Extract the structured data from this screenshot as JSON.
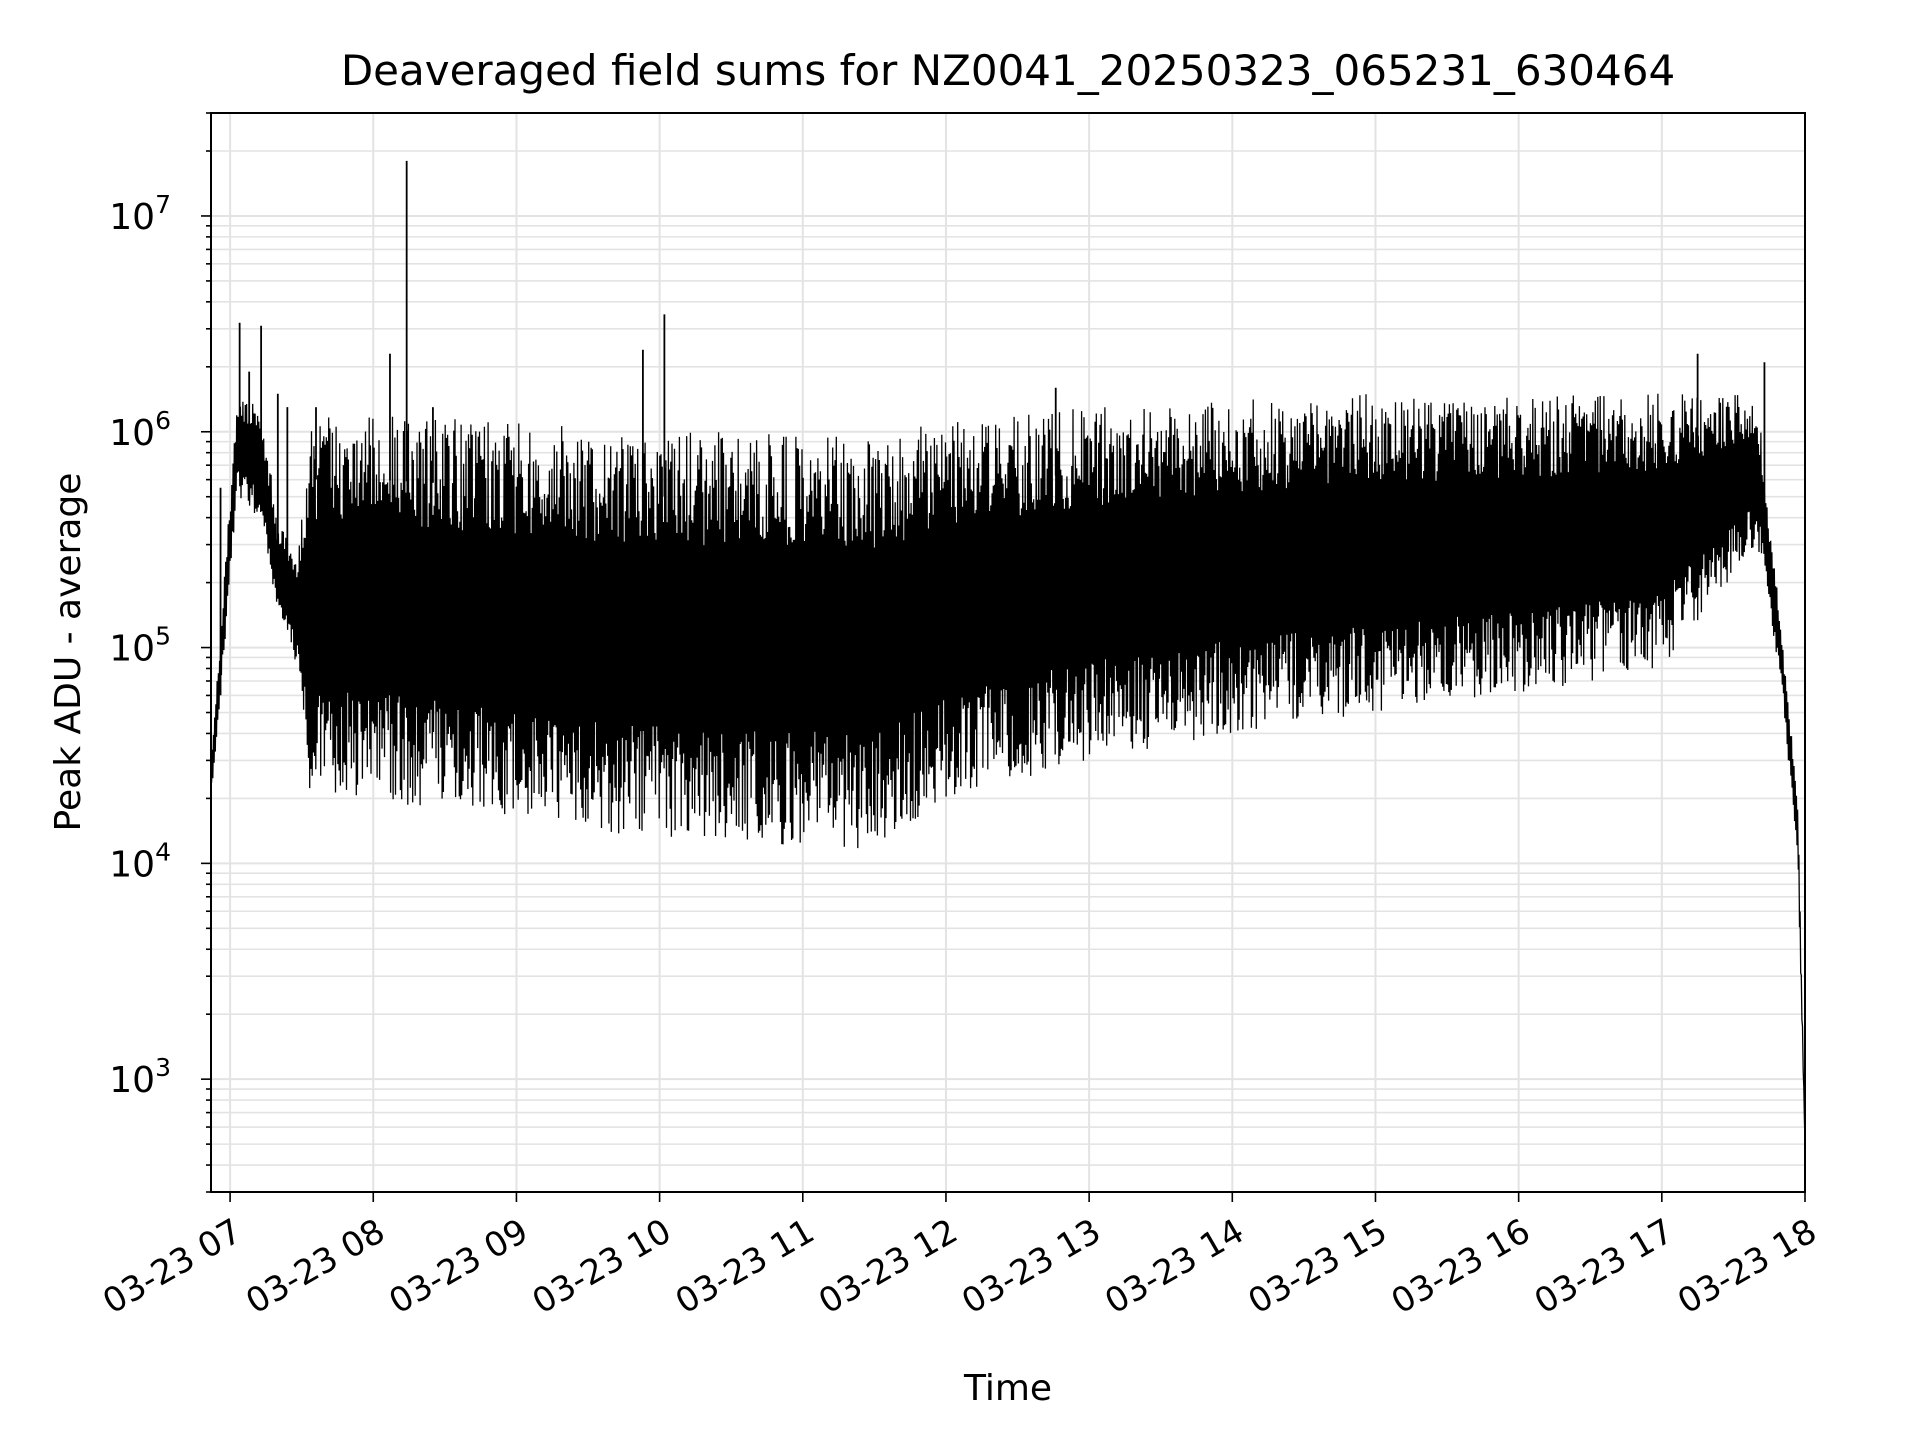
{
  "chart_data": {
    "type": "line",
    "title": "Deaveraged field sums for NZ0041_20250323_065231_630464",
    "xlabel": "Time",
    "ylabel": "Peak ADU - average",
    "yscale": "log",
    "xlim": [
      "2025-03-23 06:52",
      "2025-03-23 18:00"
    ],
    "ylim": [
      300,
      30000000
    ],
    "grid": "on (major and minor)",
    "x_ticks": [
      "03-23 07",
      "03-23 08",
      "03-23 09",
      "03-23 10",
      "03-23 11",
      "03-23 12",
      "03-23 13",
      "03-23 14",
      "03-23 15",
      "03-23 16",
      "03-23 17",
      "03-23 18"
    ],
    "y_ticks": [
      {
        "value": 1000,
        "base": "10",
        "exp": "3"
      },
      {
        "value": 10000,
        "base": "10",
        "exp": "4"
      },
      {
        "value": 100000,
        "base": "10",
        "exp": "5"
      },
      {
        "value": 1000000,
        "base": "10",
        "exp": "6"
      },
      {
        "value": 10000000,
        "base": "10",
        "exp": "7"
      }
    ],
    "series": [
      {
        "color": "#000000",
        "envelope": [
          {
            "time": "2025-03-23 06:52",
            "low": 20000,
            "high": 30000
          },
          {
            "time": "2025-03-23 06:56",
            "low": 60000,
            "high": 120000
          },
          {
            "time": "2025-03-23 07:03",
            "low": 500000,
            "high": 1500000
          },
          {
            "time": "2025-03-23 07:12",
            "low": 400000,
            "high": 1500000
          },
          {
            "time": "2025-03-23 07:20",
            "low": 150000,
            "high": 400000
          },
          {
            "time": "2025-03-23 07:28",
            "low": 80000,
            "high": 250000
          },
          {
            "time": "2025-03-23 07:33",
            "low": 20000,
            "high": 1200000
          },
          {
            "time": "2025-03-23 08:00",
            "low": 20000,
            "high": 1200000
          },
          {
            "time": "2025-03-23 09:00",
            "low": 15000,
            "high": 1100000
          },
          {
            "time": "2025-03-23 10:00",
            "low": 13000,
            "high": 1000000
          },
          {
            "time": "2025-03-23 11:00",
            "low": 12000,
            "high": 1000000
          },
          {
            "time": "2025-03-23 11:30",
            "low": 11000,
            "high": 1000000
          },
          {
            "time": "2025-03-23 12:00",
            "low": 20000,
            "high": 1100000
          },
          {
            "time": "2025-03-23 13:00",
            "low": 30000,
            "high": 1300000
          },
          {
            "time": "2025-03-23 14:00",
            "low": 40000,
            "high": 1400000
          },
          {
            "time": "2025-03-23 15:00",
            "low": 50000,
            "high": 1500000
          },
          {
            "time": "2025-03-23 16:00",
            "low": 60000,
            "high": 1500000
          },
          {
            "time": "2025-03-23 17:00",
            "low": 80000,
            "high": 1500000
          },
          {
            "time": "2025-03-23 17:40",
            "low": 300000,
            "high": 1500000
          },
          {
            "time": "2025-03-23 17:50",
            "low": 70000,
            "high": 120000
          },
          {
            "time": "2025-03-23 17:57",
            "low": 10000,
            "high": 20000
          },
          {
            "time": "2025-03-23 18:00",
            "low": 500,
            "high": 500
          }
        ],
        "spikes": [
          {
            "time": "2025-03-23 06:56",
            "value": 550000
          },
          {
            "time": "2025-03-23 07:04",
            "value": 3200000
          },
          {
            "time": "2025-03-23 07:08",
            "value": 1900000
          },
          {
            "time": "2025-03-23 07:13",
            "value": 3100000
          },
          {
            "time": "2025-03-23 07:20",
            "value": 1500000
          },
          {
            "time": "2025-03-23 07:24",
            "value": 1300000
          },
          {
            "time": "2025-03-23 07:36",
            "value": 1300000
          },
          {
            "time": "2025-03-23 08:07",
            "value": 2300000
          },
          {
            "time": "2025-03-23 08:14",
            "value": 18000000
          },
          {
            "time": "2025-03-23 08:25",
            "value": 1300000
          },
          {
            "time": "2025-03-23 09:53",
            "value": 2400000
          },
          {
            "time": "2025-03-23 10:02",
            "value": 3500000
          },
          {
            "time": "2025-03-23 12:46",
            "value": 1600000
          },
          {
            "time": "2025-03-23 17:15",
            "value": 2300000
          },
          {
            "time": "2025-03-23 17:43",
            "value": 2100000
          }
        ]
      }
    ]
  }
}
